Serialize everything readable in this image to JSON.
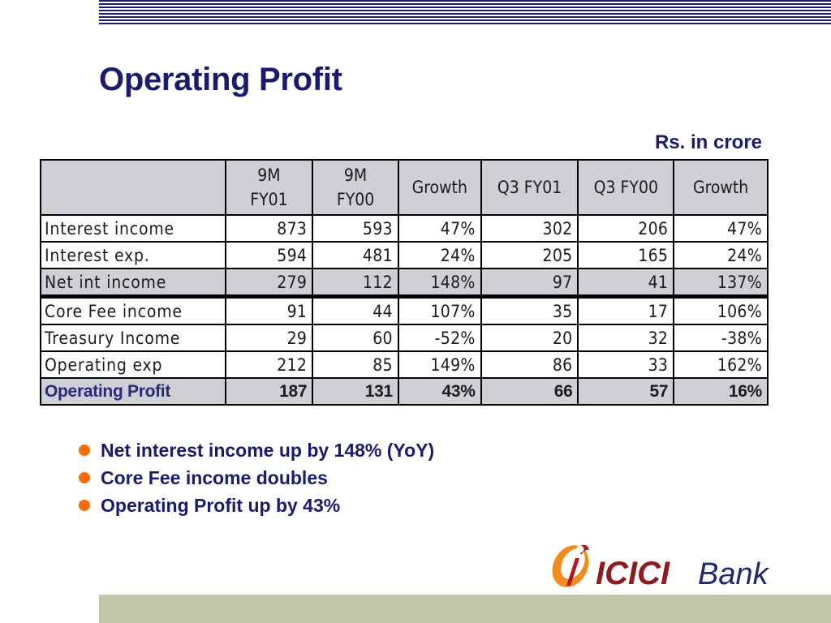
{
  "colors": {
    "title": "#1a1a6e",
    "header_shade": "#cfcfd6",
    "bullet": "#ff6a00",
    "stripes": "#1b1b6e",
    "footer_band": "#c3c5a8"
  },
  "title": "Operating Profit",
  "units": "Rs. in crore",
  "table": {
    "headers": [
      "",
      {
        "line1": "9M",
        "line2": "FY01"
      },
      {
        "line1": "9M",
        "line2": "FY00"
      },
      "Growth",
      "Q3 FY01",
      "Q3 FY00",
      "Growth"
    ],
    "rows": [
      {
        "label": "Interest income",
        "values": [
          "873",
          "593",
          "47%",
          "302",
          "206",
          "47%"
        ]
      },
      {
        "label": "Interest exp.",
        "values": [
          "594",
          "481",
          "24%",
          "205",
          "165",
          "24%"
        ]
      },
      {
        "label": "Net int income",
        "values": [
          "279",
          "112",
          "148%",
          "97",
          "41",
          "137%"
        ]
      },
      {
        "label": "Core Fee income",
        "values": [
          "91",
          "44",
          "107%",
          "35",
          "17",
          "106%"
        ]
      },
      {
        "label": "Treasury Income",
        "values": [
          "29",
          "60",
          "-52%",
          "20",
          "32",
          "-38%"
        ]
      },
      {
        "label": "Operating exp",
        "values": [
          "212",
          "85",
          "149%",
          "86",
          "33",
          "162%"
        ]
      },
      {
        "label": "Operating Profit",
        "values": [
          "187",
          "131",
          "43%",
          "66",
          "57",
          "16%"
        ]
      }
    ]
  },
  "bullets": [
    "Net interest income up by 148% (YoY)",
    "Core Fee income doubles",
    "Operating Profit up by 43%"
  ],
  "logo": {
    "icon": "icici-i-logo-icon",
    "brand": "ICICI",
    "suffix": "Bank"
  }
}
